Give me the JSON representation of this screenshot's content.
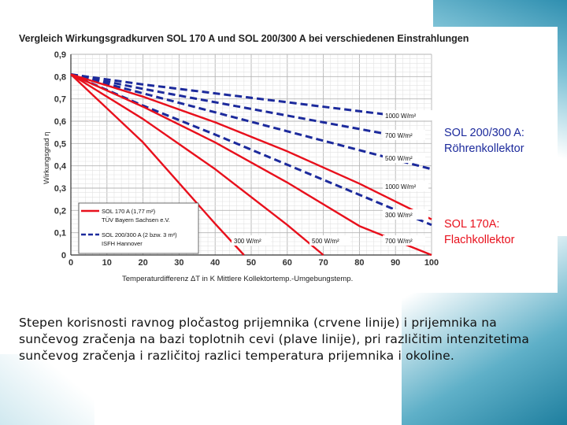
{
  "colors": {
    "red": "#e8101c",
    "blue": "#1c2a9c",
    "grid": "#c8c8c8",
    "axis": "#333333"
  },
  "slide": {
    "caption": "Stepen korisnosti ravnog pločastog prijemnika (crvene linije) i prijemnika na sunčevog zračenja na bazi toplotnih cevi (plave linije), pri različitim intenzitetima sunčevog zračenja i različitoj razlici temperatura prijemnika i okoline."
  },
  "labels": {
    "red_1000": "1000 W/m²",
    "red_500": "500 W/m²",
    "red_300": "300 W/m²",
    "blue_1000": "1000 W/m²",
    "blue_700": "700 W/m²",
    "blue_500": "500 W/m²",
    "blue_300": "300 W/m²",
    "blue_700_low": "700 W/m²",
    "legend_red_line1": "SOL 170 A (1,77 m²)",
    "legend_red_line2": "TÜV Bayern Sachsen e.V.",
    "legend_blue_line1": "SOL 200/300 A (2 bzw. 3 m²)",
    "legend_blue_line2": "ISFH  Hannover",
    "side_blue_line1": "SOL 200/300 A:",
    "side_blue_line2": "Röhrenkollektor",
    "side_red_line1": "SOL 170A:",
    "side_red_line2": "Flachkollektor"
  },
  "chart_data": {
    "type": "line",
    "title": "Vergleich Wirkungsgradkurven SOL 170 A und SOL 200/300 A bei verschiedenen Einstrahlungen",
    "xlabel": "Temperaturdifferenz ΔT in K  Mittlere Kollektortemp.-Umgebungstemp.",
    "ylabel": "Wirkungsgrad η",
    "xlim": [
      0,
      100
    ],
    "ylim": [
      0,
      0.9
    ],
    "xticks": [
      "0",
      "10",
      "20",
      "30",
      "40",
      "50",
      "60",
      "70",
      "80",
      "90",
      "100"
    ],
    "yticks": [
      "0",
      "0,1",
      "0,2",
      "0,3",
      "0,4",
      "0,5",
      "0,6",
      "0,7",
      "0,8",
      "0,9"
    ],
    "grid": true,
    "series": [
      {
        "name": "SOL 170 A 1000 W/m²",
        "collector": "SOL 170 A",
        "style": "solid",
        "x": [
          0,
          20,
          40,
          60,
          80,
          100
        ],
        "y": [
          0.81,
          0.71,
          0.595,
          0.465,
          0.32,
          0.16
        ]
      },
      {
        "name": "SOL 170 A 700 W/m²",
        "collector": "SOL 170 A",
        "style": "solid",
        "x": [
          0,
          20,
          40,
          60,
          80,
          100
        ],
        "y": [
          0.81,
          0.665,
          0.505,
          0.325,
          0.13,
          0.0
        ]
      },
      {
        "name": "SOL 170 A 500 W/m²",
        "collector": "SOL 170 A",
        "style": "solid",
        "x": [
          0,
          20,
          40,
          60,
          70
        ],
        "y": [
          0.81,
          0.61,
          0.385,
          0.135,
          0.0
        ]
      },
      {
        "name": "SOL 170 A 300 W/m²",
        "collector": "SOL 170 A",
        "style": "solid",
        "x": [
          0,
          20,
          40,
          48
        ],
        "y": [
          0.81,
          0.505,
          0.14,
          0.0
        ]
      },
      {
        "name": "SOL 200/300 A 1000 W/m²",
        "collector": "SOL 200/300 A",
        "style": "dashed",
        "x": [
          0,
          20,
          40,
          60,
          80,
          90
        ],
        "y": [
          0.81,
          0.765,
          0.725,
          0.685,
          0.645,
          0.625
        ]
      },
      {
        "name": "SOL 200/300 A 700 W/m²",
        "collector": "SOL 200/300 A",
        "style": "dashed",
        "x": [
          0,
          20,
          40,
          60,
          80,
          90
        ],
        "y": [
          0.81,
          0.745,
          0.685,
          0.625,
          0.565,
          0.535
        ]
      },
      {
        "name": "SOL 200/300 A 500 W/m²",
        "collector": "SOL 200/300 A",
        "style": "dashed",
        "x": [
          0,
          20,
          40,
          60,
          80,
          100
        ],
        "y": [
          0.81,
          0.725,
          0.64,
          0.555,
          0.47,
          0.385
        ]
      },
      {
        "name": "SOL 200/300 A 300 W/m²",
        "collector": "SOL 200/300 A",
        "style": "dashed",
        "x": [
          0,
          20,
          40,
          60,
          80,
          100
        ],
        "y": [
          0.81,
          0.67,
          0.54,
          0.405,
          0.27,
          0.135
        ]
      }
    ]
  }
}
